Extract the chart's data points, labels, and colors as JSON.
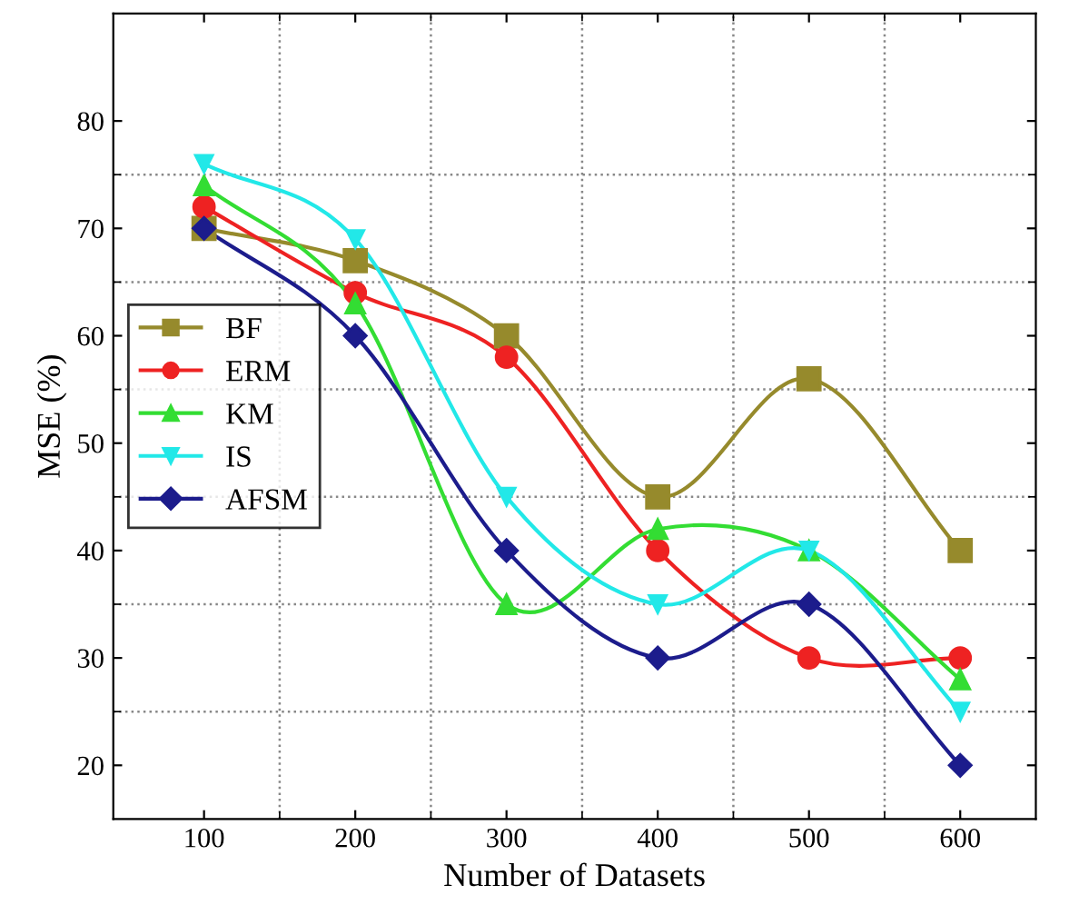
{
  "chart_data": {
    "type": "line",
    "xlabel": "Number of Datasets",
    "ylabel": "MSE (%)",
    "x": [
      100,
      200,
      300,
      400,
      500,
      600
    ],
    "series": [
      {
        "name": "BF",
        "color": "#968a2c",
        "marker": "square",
        "values": [
          70,
          67,
          60,
          45,
          56,
          40
        ]
      },
      {
        "name": "ERM",
        "color": "#ee2222",
        "marker": "circle",
        "values": [
          72,
          64,
          58,
          40,
          30,
          30
        ]
      },
      {
        "name": "KM",
        "color": "#33dd33",
        "marker": "triangle",
        "values": [
          74,
          63,
          35,
          42,
          40,
          28
        ]
      },
      {
        "name": "IS",
        "color": "#22e8e8",
        "marker": "triangle_down",
        "values": [
          76,
          69,
          45,
          35,
          40,
          25
        ]
      },
      {
        "name": "AFSM",
        "color": "#1c1c8c",
        "marker": "diamond",
        "values": [
          70,
          60,
          40,
          30,
          35,
          20
        ]
      }
    ],
    "xlim": [
      40,
      650
    ],
    "ylim": [
      15,
      90
    ],
    "xticks": [
      100,
      200,
      300,
      400,
      500,
      600
    ],
    "yticks": [
      20,
      30,
      40,
      50,
      60,
      70,
      80
    ],
    "grid": true,
    "legend": "center left",
    "line_style": "solid"
  }
}
